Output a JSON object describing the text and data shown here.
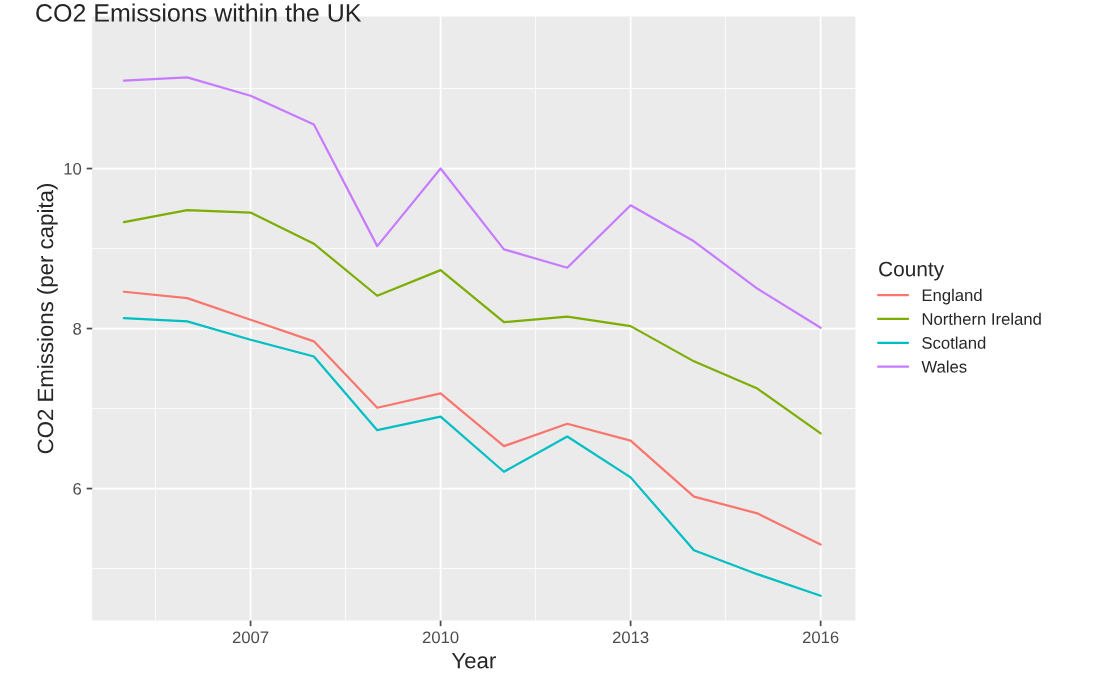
{
  "chart_data": {
    "type": "line",
    "title": "CO2 Emissions within the UK",
    "xlabel": "Year",
    "ylabel": "CO2 Emissions (per capita)",
    "legend_title": "County",
    "legend": "right",
    "grid": true,
    "x": [
      2005,
      2006,
      2007,
      2008,
      2009,
      2010,
      2011,
      2012,
      2013,
      2014,
      2015,
      2016
    ],
    "xlim": [
      2004.5,
      2016.55
    ],
    "xticks": [
      2007,
      2010,
      2013,
      2016
    ],
    "ylim": [
      4.35,
      11.9
    ],
    "yticks": [
      6,
      8,
      10
    ],
    "series": [
      {
        "name": "England",
        "color": "#f8766d",
        "values": [
          8.46,
          8.38,
          8.11,
          7.84,
          7.01,
          7.19,
          6.53,
          6.81,
          6.6,
          5.9,
          5.69,
          5.3
        ]
      },
      {
        "name": "Northern Ireland",
        "color": "#7cae00",
        "values": [
          9.33,
          9.48,
          9.45,
          9.06,
          8.41,
          8.73,
          8.08,
          8.15,
          8.03,
          7.59,
          7.25,
          6.69
        ]
      },
      {
        "name": "Scotland",
        "color": "#00bfc4",
        "values": [
          8.13,
          8.09,
          7.86,
          7.65,
          6.73,
          6.9,
          6.21,
          6.65,
          6.14,
          5.23,
          4.93,
          4.66
        ]
      },
      {
        "name": "Wales",
        "color": "#c77cff",
        "values": [
          11.1,
          11.14,
          10.91,
          10.55,
          9.03,
          10.0,
          8.99,
          8.76,
          9.54,
          9.09,
          8.5,
          8.01
        ]
      }
    ]
  }
}
